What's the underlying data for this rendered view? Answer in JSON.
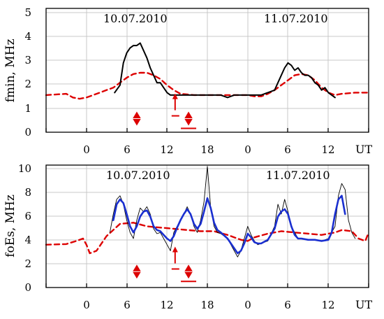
{
  "chart_data": [
    {
      "type": "line",
      "ylabel": "fmin, MHz",
      "x_unit_label": "UT",
      "date_labels": [
        "10.07.2010",
        "11.07.2010"
      ],
      "xlim": [
        -6,
        42
      ],
      "ylim": [
        0,
        5
      ],
      "x_tick_labels": [
        "",
        "0",
        "6",
        "12",
        "18",
        "0",
        "6",
        "12",
        ""
      ],
      "y_tick_labels": [
        "0",
        "1",
        "2",
        "3",
        "4",
        "5"
      ],
      "grid": true,
      "colors": {
        "observed": "#000000",
        "median": "#dd0000",
        "markers": "#dd0000"
      },
      "series": [
        {
          "role": "observed",
          "style": "solid-black",
          "x": [
            4.2,
            5.0,
            5.5,
            6.0,
            6.5,
            7.0,
            7.5,
            8.0,
            8.5,
            9.0,
            9.5,
            10.0,
            10.5,
            11.0,
            11.5,
            12.0,
            12.5,
            13.0,
            14.0,
            15.0,
            16.0,
            17.0,
            18.0,
            19.0,
            20.0,
            21.0,
            22.0,
            23.0,
            24.0,
            25.0,
            26.0,
            27.0,
            28.0,
            28.5,
            29.0,
            29.5,
            30.0,
            30.5,
            31.0,
            31.5,
            32.0,
            32.5,
            33.0,
            33.5,
            34.0,
            34.5,
            35.0,
            35.5,
            36.0,
            36.5,
            37.0
          ],
          "y": [
            1.6,
            1.9,
            2.8,
            3.2,
            3.4,
            3.5,
            3.5,
            3.6,
            3.3,
            3.0,
            2.6,
            2.3,
            2.0,
            2.0,
            1.8,
            1.6,
            1.5,
            1.5,
            1.5,
            1.5,
            1.5,
            1.5,
            1.5,
            1.5,
            1.5,
            1.4,
            1.5,
            1.5,
            1.5,
            1.5,
            1.5,
            1.6,
            1.7,
            2.0,
            2.3,
            2.6,
            2.8,
            2.7,
            2.5,
            2.6,
            2.4,
            2.3,
            2.3,
            2.2,
            2.0,
            1.9,
            1.7,
            1.8,
            1.6,
            1.5,
            1.4
          ]
        },
        {
          "role": "median",
          "style": "dashed-red",
          "x": [
            -6,
            -3,
            -2,
            -1,
            0,
            1,
            2,
            3,
            4,
            5,
            6,
            7,
            8,
            9,
            10,
            11,
            12,
            13,
            14,
            16,
            18,
            21,
            24,
            25,
            26,
            27,
            28,
            29,
            30,
            31,
            32,
            33,
            34,
            35,
            36,
            37,
            38,
            40,
            42
          ],
          "y": [
            1.5,
            1.55,
            1.4,
            1.35,
            1.4,
            1.5,
            1.6,
            1.7,
            1.8,
            2.0,
            2.2,
            2.35,
            2.4,
            2.4,
            2.3,
            2.15,
            1.9,
            1.7,
            1.55,
            1.5,
            1.5,
            1.5,
            1.5,
            1.45,
            1.45,
            1.55,
            1.7,
            1.9,
            2.1,
            2.3,
            2.35,
            2.3,
            2.1,
            1.8,
            1.6,
            1.5,
            1.55,
            1.6,
            1.6
          ]
        }
      ],
      "markers": [
        {
          "symbol": "diamond",
          "x": 7.5,
          "y": 0.55
        },
        {
          "symbol": "up-arrow",
          "x": 13.2,
          "y": 1.0
        },
        {
          "symbol": "diamond",
          "x": 15.2,
          "y": 0.55
        }
      ]
    },
    {
      "type": "line",
      "ylabel": "foEs, MHz",
      "x_unit_label": "UT",
      "date_labels": [
        "10.07.2010",
        "11.07.2010"
      ],
      "xlim": [
        -6,
        42
      ],
      "ylim": [
        0,
        10
      ],
      "x_tick_labels": [
        "",
        "0",
        "6",
        "12",
        "18",
        "0",
        "6",
        "12",
        ""
      ],
      "y_tick_labels": [
        "0",
        "2",
        "4",
        "6",
        "8",
        "10"
      ],
      "grid": true,
      "colors": {
        "observed": "#000000",
        "smoothed": "#1a2fd0",
        "median": "#dd0000",
        "markers": "#dd0000"
      },
      "series": [
        {
          "role": "observed",
          "style": "thin-black",
          "x": [
            3.5,
            4.0,
            4.5,
            5.0,
            5.5,
            6.0,
            6.5,
            7.0,
            7.5,
            8.0,
            8.5,
            9.0,
            9.5,
            10.0,
            10.5,
            11.0,
            11.5,
            12.0,
            12.5,
            13.0,
            13.5,
            14.0,
            14.5,
            15.0,
            15.5,
            16.0,
            16.5,
            17.0,
            17.5,
            18.0,
            18.5,
            19.0,
            19.5,
            20.0,
            21.0,
            22.0,
            22.5,
            23.0,
            23.5,
            24.0,
            24.5,
            25.0,
            25.5,
            26.0,
            27.0,
            28.0,
            28.5,
            29.0,
            29.5,
            30.0,
            30.5,
            31.0,
            31.5,
            32.0,
            33.0,
            34.0,
            35.0,
            36.0,
            37.0,
            37.5,
            38.0,
            38.5,
            39.0,
            39.5,
            40.0
          ],
          "y": [
            4.5,
            6.0,
            7.2,
            7.5,
            6.8,
            5.5,
            4.5,
            4.0,
            5.5,
            6.5,
            6.2,
            6.6,
            6.0,
            4.8,
            4.4,
            4.5,
            4.0,
            3.5,
            3.0,
            4.5,
            5.0,
            5.5,
            6.0,
            6.6,
            6.0,
            5.0,
            4.5,
            5.5,
            7.0,
            9.9,
            6.5,
            5.0,
            4.5,
            4.4,
            4.0,
            3.0,
            2.5,
            3.0,
            4.0,
            5.0,
            4.3,
            3.8,
            3.5,
            3.6,
            3.8,
            5.0,
            6.8,
            6.0,
            7.2,
            6.2,
            5.0,
            4.5,
            4.0,
            4.0,
            3.9,
            3.9,
            3.8,
            4.0,
            5.0,
            7.5,
            8.5,
            8.0,
            5.5,
            4.5,
            4.0
          ]
        },
        {
          "role": "smoothed",
          "style": "thick-blue",
          "x": [
            4.0,
            4.5,
            5.0,
            5.5,
            6.0,
            6.5,
            7.0,
            7.5,
            8.0,
            8.5,
            9.0,
            9.5,
            10.0,
            10.5,
            11.0,
            11.5,
            12.0,
            12.5,
            13.0,
            13.5,
            14.0,
            14.5,
            15.0,
            15.5,
            16.0,
            16.5,
            17.0,
            17.5,
            18.0,
            18.5,
            19.0,
            19.5,
            20.0,
            21.0,
            22.0,
            22.5,
            23.0,
            23.5,
            24.0,
            24.5,
            25.0,
            25.5,
            26.0,
            27.0,
            28.0,
            28.5,
            29.0,
            29.5,
            30.0,
            30.5,
            31.0,
            31.5,
            32.0,
            33.0,
            34.0,
            35.0,
            36.0,
            36.5,
            37.0,
            37.5,
            38.0,
            38.5
          ],
          "y": [
            5.5,
            6.8,
            7.2,
            6.9,
            6.0,
            5.0,
            4.5,
            5.0,
            5.8,
            6.2,
            6.3,
            5.8,
            5.0,
            4.7,
            4.6,
            4.3,
            4.0,
            3.8,
            4.2,
            4.9,
            5.5,
            6.0,
            6.4,
            6.0,
            5.2,
            4.8,
            5.2,
            6.2,
            7.3,
            6.5,
            5.3,
            4.7,
            4.5,
            4.0,
            3.2,
            2.8,
            3.0,
            3.6,
            4.4,
            4.1,
            3.7,
            3.6,
            3.6,
            3.9,
            4.8,
            5.8,
            6.2,
            6.4,
            6.0,
            5.0,
            4.3,
            4.0,
            4.0,
            3.9,
            3.9,
            3.8,
            3.9,
            4.5,
            6.0,
            7.2,
            7.5,
            6.0
          ]
        },
        {
          "role": "median",
          "style": "dashed-red",
          "x": [
            -6,
            -3,
            -1.5,
            -0.5,
            0,
            0.5,
            1.5,
            3,
            5,
            7,
            9,
            11,
            13,
            15,
            17,
            19,
            21,
            23,
            24,
            25,
            27,
            29,
            31,
            33,
            35,
            37,
            38,
            39.5,
            40.5,
            41.5,
            42
          ],
          "y": [
            3.5,
            3.55,
            3.8,
            4.0,
            3.5,
            2.8,
            3.0,
            4.2,
            5.2,
            5.3,
            5.0,
            4.9,
            4.8,
            4.7,
            4.6,
            4.6,
            4.3,
            3.9,
            3.8,
            4.1,
            4.4,
            4.6,
            4.5,
            4.4,
            4.3,
            4.5,
            4.7,
            4.6,
            4.0,
            3.8,
            4.5
          ]
        }
      ],
      "markers": [
        {
          "symbol": "diamond",
          "x": 7.5,
          "y": 1.3
        },
        {
          "symbol": "up-arrow",
          "x": 13.2,
          "y": 2.2
        },
        {
          "symbol": "diamond",
          "x": 15.2,
          "y": 1.3
        }
      ]
    }
  ]
}
